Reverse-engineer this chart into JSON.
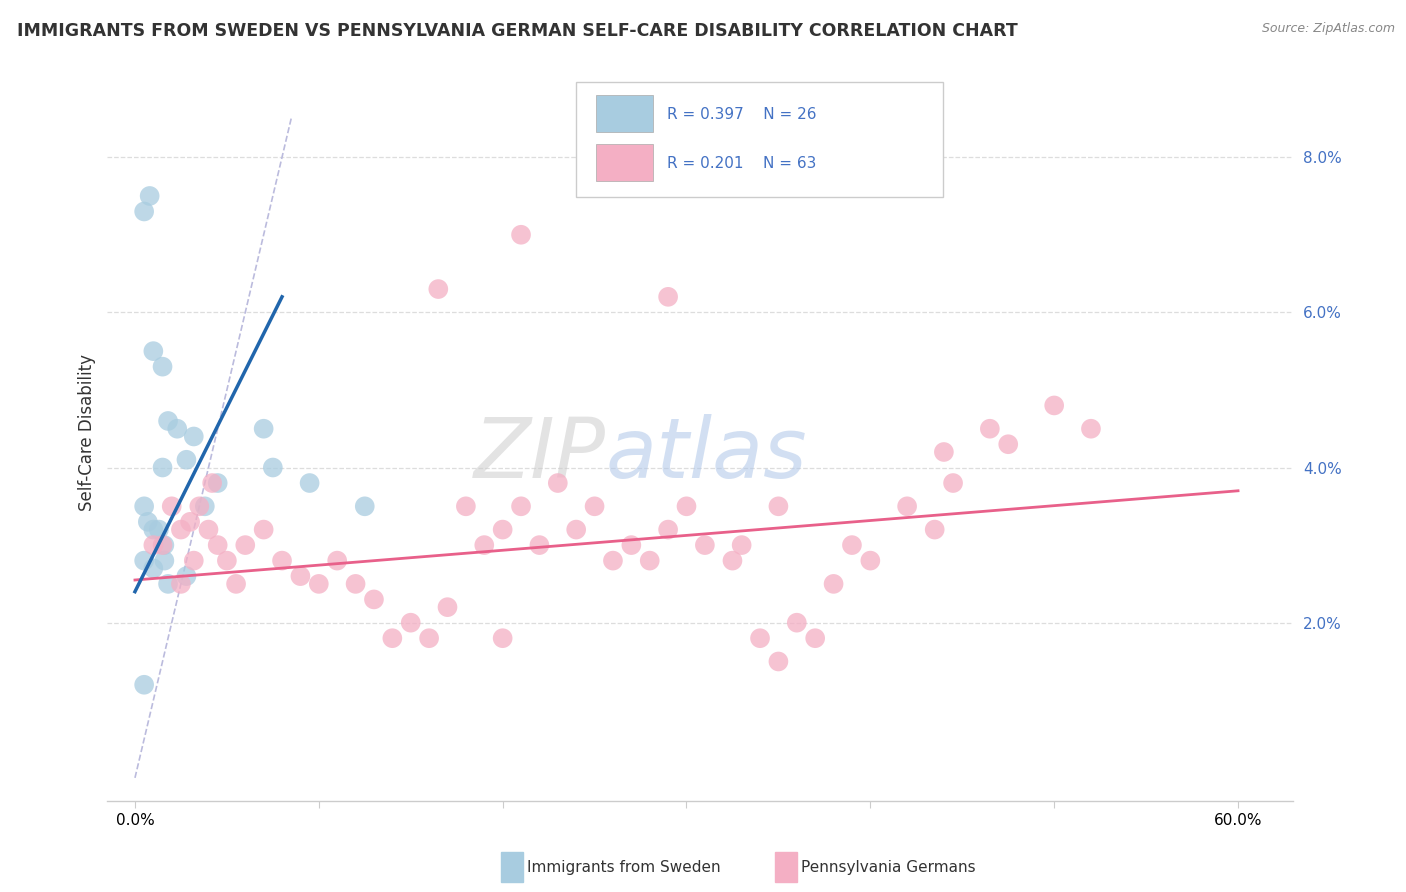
{
  "title": "IMMIGRANTS FROM SWEDEN VS PENNSYLVANIA GERMAN SELF-CARE DISABILITY CORRELATION CHART",
  "source": "Source: ZipAtlas.com",
  "ylabel": "Self-Care Disability",
  "blue_color": "#a8cce0",
  "pink_color": "#f4afc4",
  "blue_line_color": "#2166ac",
  "pink_line_color": "#e8608a",
  "ref_line_color": "#aaaacc",
  "label_sweden": "Immigrants from Sweden",
  "label_pa_german": "Pennsylvania Germans",
  "sweden_points": [
    [
      0.5,
      7.3
    ],
    [
      0.8,
      7.5
    ],
    [
      1.0,
      5.5
    ],
    [
      1.5,
      5.3
    ],
    [
      1.8,
      4.6
    ],
    [
      2.3,
      4.5
    ],
    [
      1.5,
      4.0
    ],
    [
      2.8,
      4.1
    ],
    [
      3.2,
      4.4
    ],
    [
      0.5,
      3.5
    ],
    [
      0.7,
      3.3
    ],
    [
      1.0,
      3.2
    ],
    [
      1.3,
      3.2
    ],
    [
      1.6,
      3.0
    ],
    [
      0.5,
      2.8
    ],
    [
      1.0,
      2.7
    ],
    [
      1.6,
      2.8
    ],
    [
      3.8,
      3.5
    ],
    [
      4.5,
      3.8
    ],
    [
      7.0,
      4.5
    ],
    [
      7.5,
      4.0
    ],
    [
      9.5,
      3.8
    ],
    [
      12.5,
      3.5
    ],
    [
      0.5,
      1.2
    ],
    [
      1.8,
      2.5
    ],
    [
      2.8,
      2.6
    ]
  ],
  "pa_german_points": [
    [
      21.0,
      7.0
    ],
    [
      16.5,
      6.3
    ],
    [
      29.0,
      6.2
    ],
    [
      2.0,
      3.5
    ],
    [
      3.0,
      3.3
    ],
    [
      4.0,
      3.2
    ],
    [
      4.5,
      3.0
    ],
    [
      5.0,
      2.8
    ],
    [
      1.5,
      3.0
    ],
    [
      2.5,
      3.2
    ],
    [
      3.5,
      3.5
    ],
    [
      4.2,
      3.8
    ],
    [
      6.0,
      3.0
    ],
    [
      7.0,
      3.2
    ],
    [
      8.0,
      2.8
    ],
    [
      9.0,
      2.6
    ],
    [
      10.0,
      2.5
    ],
    [
      11.0,
      2.8
    ],
    [
      12.0,
      2.5
    ],
    [
      13.0,
      2.3
    ],
    [
      14.0,
      1.8
    ],
    [
      15.0,
      2.0
    ],
    [
      16.0,
      1.8
    ],
    [
      17.0,
      2.2
    ],
    [
      18.0,
      3.5
    ],
    [
      19.0,
      3.0
    ],
    [
      20.0,
      3.2
    ],
    [
      21.0,
      3.5
    ],
    [
      22.0,
      3.0
    ],
    [
      23.0,
      3.8
    ],
    [
      24.0,
      3.2
    ],
    [
      25.0,
      3.5
    ],
    [
      26.0,
      2.8
    ],
    [
      27.0,
      3.0
    ],
    [
      28.0,
      2.8
    ],
    [
      29.0,
      3.2
    ],
    [
      30.0,
      3.5
    ],
    [
      31.0,
      3.0
    ],
    [
      32.5,
      2.8
    ],
    [
      33.0,
      3.0
    ],
    [
      34.0,
      1.8
    ],
    [
      35.0,
      1.5
    ],
    [
      36.0,
      2.0
    ],
    [
      37.0,
      1.8
    ],
    [
      38.0,
      2.5
    ],
    [
      39.0,
      3.0
    ],
    [
      40.0,
      2.8
    ],
    [
      42.0,
      3.5
    ],
    [
      43.5,
      3.2
    ],
    [
      44.5,
      3.8
    ],
    [
      46.5,
      4.5
    ],
    [
      47.5,
      4.3
    ],
    [
      50.0,
      4.8
    ],
    [
      52.0,
      4.5
    ],
    [
      2.5,
      2.5
    ],
    [
      5.5,
      2.5
    ],
    [
      1.0,
      3.0
    ],
    [
      20.0,
      1.8
    ],
    [
      3.2,
      2.8
    ],
    [
      35.0,
      3.5
    ],
    [
      44.0,
      4.2
    ]
  ],
  "xlim": [
    -1.5,
    63
  ],
  "ylim": [
    -0.3,
    9.2
  ],
  "yticks": [
    2.0,
    4.0,
    6.0,
    8.0
  ],
  "xticks": [
    0,
    10,
    20,
    30,
    40,
    50,
    60
  ],
  "blue_trend_x": [
    0,
    8
  ],
  "blue_trend_y": [
    2.4,
    6.2
  ],
  "pink_trend_x": [
    0,
    60
  ],
  "pink_trend_y": [
    2.55,
    3.7
  ],
  "ref_line_x": [
    0,
    8.5
  ],
  "ref_line_y": [
    0,
    8.5
  ]
}
